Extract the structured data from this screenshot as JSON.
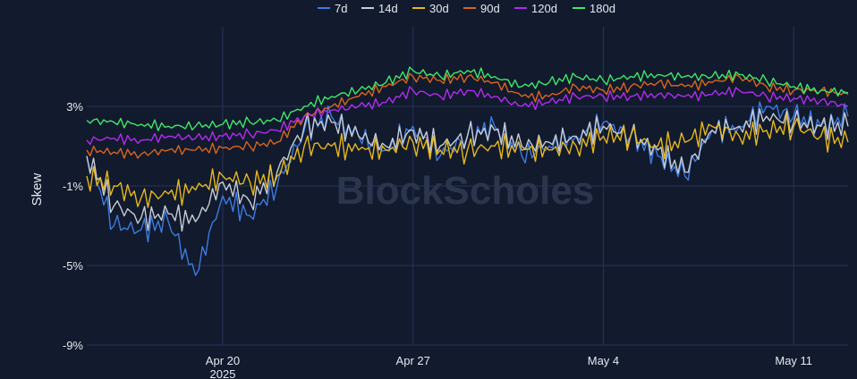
{
  "chart_data": {
    "type": "line",
    "ylabel": "Skew",
    "ylim": [
      -9,
      7
    ],
    "y_ticks": [
      {
        "value": 3,
        "label": "3%"
      },
      {
        "value": -1,
        "label": "-1%"
      },
      {
        "value": -5,
        "label": "-5%"
      },
      {
        "value": -9,
        "label": "-9%"
      }
    ],
    "x_range": [
      "2025-04-15",
      "2025-05-13"
    ],
    "x_ticks": [
      {
        "date": "2025-04-20",
        "label": "Apr 20",
        "sublabel": "2025"
      },
      {
        "date": "2025-04-27",
        "label": "Apr 27",
        "sublabel": ""
      },
      {
        "date": "2025-05-04",
        "label": "May 4",
        "sublabel": ""
      },
      {
        "date": "2025-05-11",
        "label": "May 11",
        "sublabel": ""
      }
    ],
    "grid": true,
    "legend_position": "top-center",
    "watermark": "BlockScholes",
    "x": [
      "2025-04-15",
      "2025-04-16",
      "2025-04-17",
      "2025-04-18",
      "2025-04-19",
      "2025-04-20",
      "2025-04-21",
      "2025-04-22",
      "2025-04-23",
      "2025-04-24",
      "2025-04-25",
      "2025-04-26",
      "2025-04-27",
      "2025-04-28",
      "2025-04-29",
      "2025-04-30",
      "2025-05-01",
      "2025-05-02",
      "2025-05-03",
      "2025-05-04",
      "2025-05-05",
      "2025-05-06",
      "2025-05-07",
      "2025-05-08",
      "2025-05-09",
      "2025-05-10",
      "2025-05-11",
      "2025-05-12",
      "2025-05-13"
    ],
    "series": [
      {
        "name": "7d",
        "color": "#3d7be0",
        "values": [
          0.5,
          -3.0,
          -3.2,
          -2.8,
          -5.5,
          -1.5,
          -2.5,
          -1.0,
          1.8,
          2.5,
          1.5,
          0.8,
          2.0,
          0.5,
          1.5,
          2.0,
          0.5,
          1.0,
          1.5,
          2.2,
          1.5,
          0.5,
          -0.5,
          1.8,
          2.0,
          3.0,
          2.5,
          2.0,
          2.5
        ]
      },
      {
        "name": "14d",
        "color": "#c6ccd6",
        "values": [
          0.5,
          -2.0,
          -2.6,
          -2.4,
          -2.8,
          -0.8,
          -1.8,
          -0.3,
          2.0,
          2.2,
          1.5,
          1.0,
          1.8,
          1.0,
          1.5,
          1.8,
          1.0,
          1.2,
          1.5,
          2.0,
          1.5,
          0.8,
          -0.3,
          1.8,
          2.0,
          2.5,
          2.2,
          2.0,
          2.0
        ]
      },
      {
        "name": "30d",
        "color": "#e6b81c",
        "values": [
          -0.5,
          -1.0,
          -1.6,
          -1.4,
          -1.2,
          -0.5,
          -0.8,
          -0.5,
          1.0,
          1.0,
          0.8,
          0.8,
          1.2,
          0.8,
          0.8,
          1.0,
          0.8,
          0.8,
          1.0,
          1.5,
          1.5,
          1.0,
          1.2,
          2.0,
          1.5,
          1.8,
          2.0,
          1.5,
          1.2
        ]
      },
      {
        "name": "90d",
        "color": "#d9651c",
        "values": [
          0.8,
          0.7,
          0.6,
          0.8,
          0.8,
          0.9,
          1.0,
          1.2,
          2.5,
          3.0,
          3.5,
          4.0,
          4.5,
          4.3,
          4.5,
          4.2,
          3.5,
          3.5,
          4.0,
          3.8,
          4.0,
          4.2,
          4.0,
          4.2,
          4.5,
          4.0,
          3.8,
          3.8,
          3.6
        ]
      },
      {
        "name": "120d",
        "color": "#b22cf0",
        "values": [
          1.3,
          1.4,
          1.3,
          1.5,
          1.4,
          1.5,
          1.6,
          1.8,
          2.5,
          2.8,
          3.0,
          3.2,
          3.8,
          3.5,
          3.8,
          3.5,
          3.0,
          3.2,
          3.5,
          3.5,
          3.5,
          3.6,
          3.5,
          3.6,
          3.8,
          3.5,
          3.4,
          3.3,
          3.0
        ]
      },
      {
        "name": "180d",
        "color": "#3ee86a",
        "values": [
          2.3,
          2.2,
          2.1,
          2.0,
          2.0,
          2.1,
          2.2,
          2.3,
          3.0,
          3.5,
          3.8,
          4.2,
          4.8,
          4.5,
          4.8,
          4.5,
          4.0,
          4.2,
          4.5,
          4.3,
          4.5,
          4.6,
          4.5,
          4.5,
          4.6,
          4.3,
          4.0,
          3.8,
          3.7
        ]
      }
    ]
  }
}
